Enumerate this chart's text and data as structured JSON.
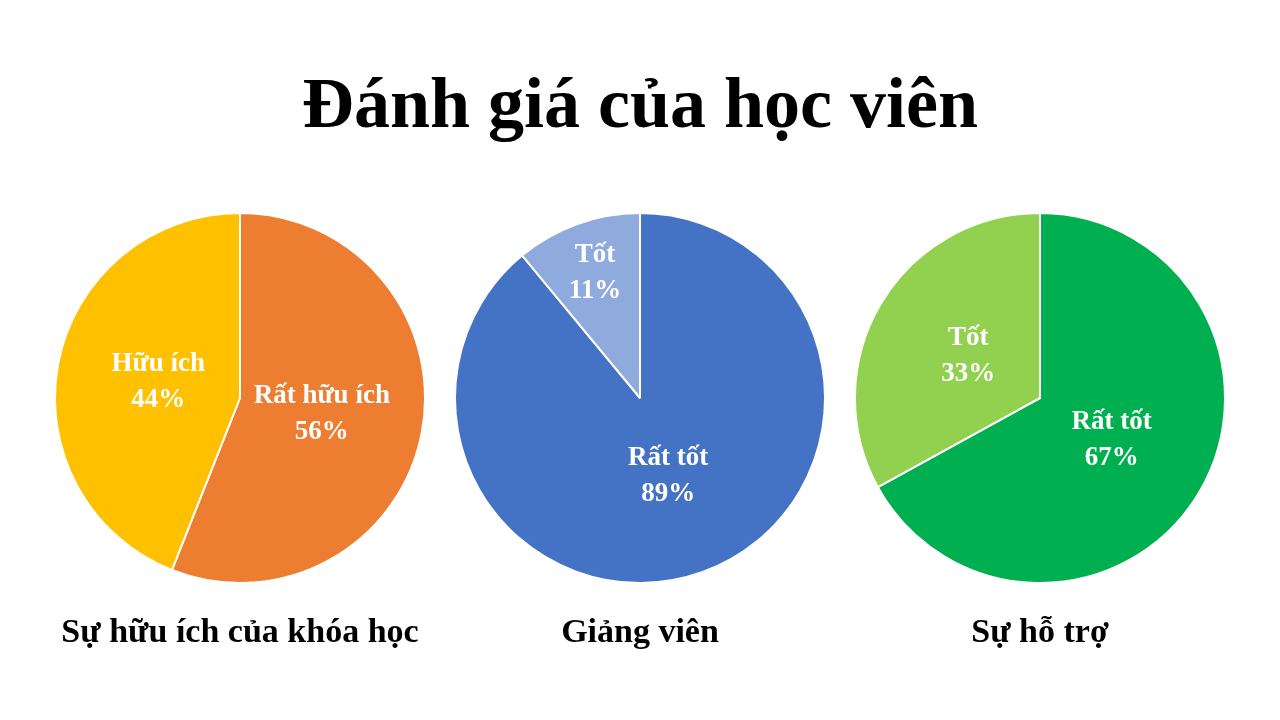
{
  "chart_data": [
    {
      "type": "other",
      "title": "Đánh giá của học viên"
    },
    {
      "type": "pie",
      "title": "Sự hữu ích của khóa học",
      "categories": [
        "Rất hữu ích",
        "Hữu ích"
      ],
      "values": [
        56,
        44
      ],
      "value_labels": [
        "56%",
        "44%"
      ],
      "colors": [
        "#ed7d31",
        "#ffc000"
      ],
      "legend": false
    },
    {
      "type": "pie",
      "title": "Giảng viên",
      "categories": [
        "Rất tốt",
        "Tốt"
      ],
      "values": [
        89,
        11
      ],
      "value_labels": [
        "89%",
        "11%"
      ],
      "colors": [
        "#4472c4",
        "#8faadc"
      ],
      "legend": false
    },
    {
      "type": "pie",
      "title": "Sự hỗ trợ",
      "categories": [
        "Rất tốt",
        "Tốt"
      ],
      "values": [
        67,
        33
      ],
      "value_labels": [
        "67%",
        "33%"
      ],
      "colors": [
        "#00b050",
        "#92d050"
      ],
      "legend": false
    }
  ]
}
